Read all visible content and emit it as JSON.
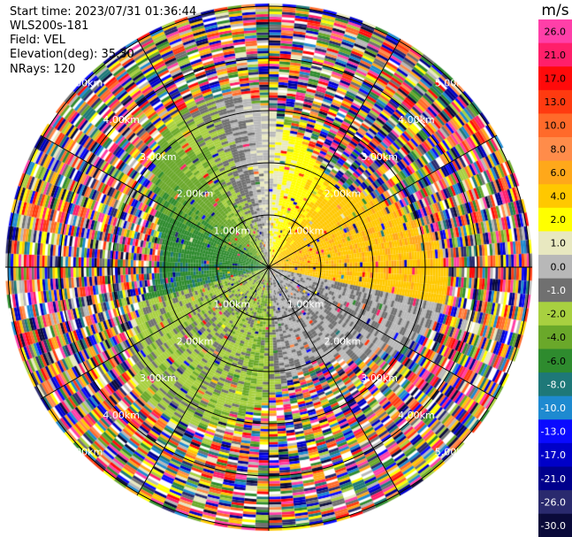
{
  "header": {
    "start_time": "Start time: 2023/07/31 01:36:44",
    "instrument": "WLS200s-181",
    "field": "Field: VEL",
    "elevation": "Elevation(deg): 35.30",
    "nrays": "NRays: 120"
  },
  "colorbar": {
    "unit_label": "m/s",
    "ticks": [
      "26.0",
      "21.0",
      "17.0",
      "13.0",
      "10.0",
      "8.0",
      "6.0",
      "4.0",
      "2.0",
      "1.0",
      "0.0",
      "-1.0",
      "-2.0",
      "-4.0",
      "-6.0",
      "-8.0",
      "-10.0",
      "-13.0",
      "-17.0",
      "-21.0",
      "-26.0",
      "-30.0"
    ],
    "colors": [
      "#ff3fa8",
      "#ff1f6a",
      "#ff0a0a",
      "#ff3a10",
      "#ff6a2a",
      "#ff8c4a",
      "#ffa81a",
      "#ffc800",
      "#ffff00",
      "#e8e8c0",
      "#b8b8b8",
      "#707070",
      "#a8d040",
      "#6aa82a",
      "#2e8b2e",
      "#1e7878",
      "#1e8ad0",
      "#0a0aff",
      "#0000c8",
      "#00008c",
      "#2a2a6e",
      "#0a0a3a"
    ]
  },
  "chart_data": {
    "type": "heatmap",
    "projection": "polar-ppi",
    "field": "VEL",
    "units": "m/s",
    "nrays": 120,
    "elevation_deg": 35.3,
    "range_rings_km": [
      1.0,
      2.0,
      3.0,
      4.0,
      5.0
    ],
    "range_ring_labels": [
      "1.00km",
      "2.00km",
      "3.00km",
      "4.00km",
      "5.00km"
    ],
    "max_range_km": 5.05,
    "color_levels": [
      -30.0,
      -26.0,
      -21.0,
      -17.0,
      -13.0,
      -10.0,
      -8.0,
      -6.0,
      -4.0,
      -2.0,
      -1.0,
      0.0,
      1.0,
      2.0,
      4.0,
      6.0,
      8.0,
      10.0,
      13.0,
      17.0,
      21.0,
      26.0
    ],
    "valid_data_range_km": 3.1,
    "structure": "near-range coherent signal: positive (yellow/orange) velocities to the east, negative (green) to the west, near-zero (grey) in south-east; noisy random values beyond ~3.1 km"
  }
}
